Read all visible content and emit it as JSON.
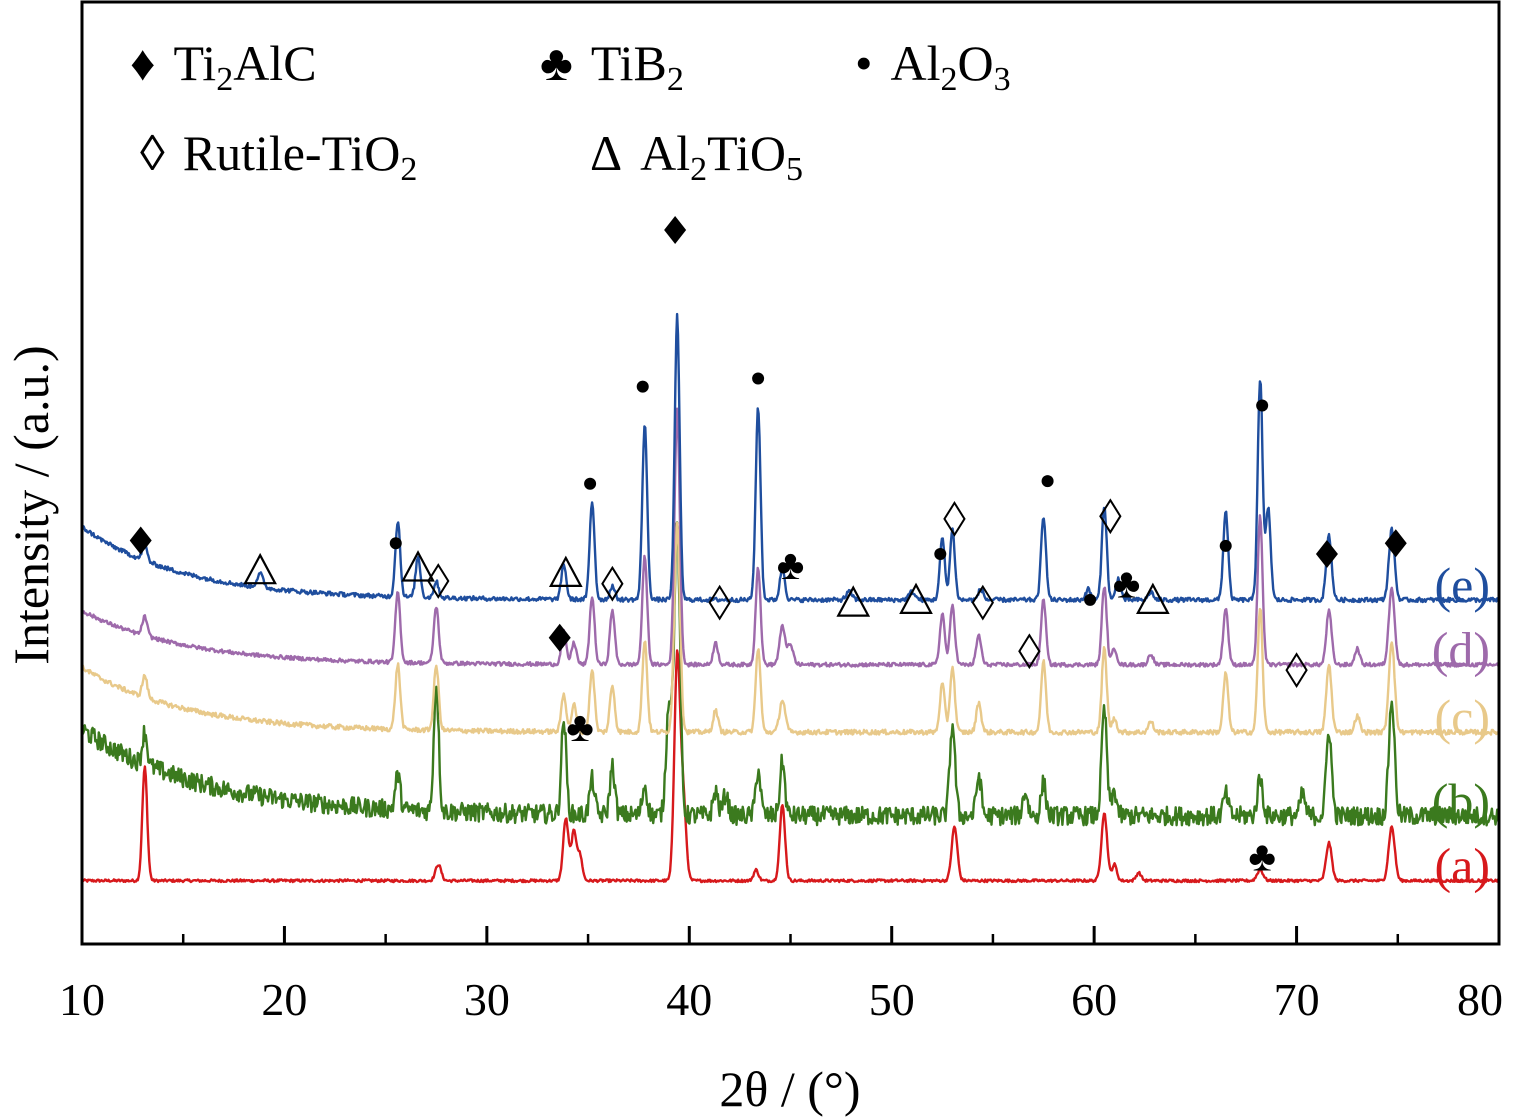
{
  "chart_data": {
    "type": "line",
    "xlabel": "2θ / (°)",
    "ylabel": "Intensity / (a.u.)",
    "xlim": [
      10,
      80
    ],
    "x_ticks": [
      10,
      20,
      30,
      40,
      50,
      60,
      70,
      80
    ],
    "y_ticks_shown": false,
    "grid": false,
    "legend": [
      {
        "symbol": "♦",
        "symbol_style": "filled",
        "name": "Ti",
        "sub": "2",
        "rest": "AlC"
      },
      {
        "symbol": "♣",
        "symbol_style": "filled",
        "name": "TiB",
        "sub": "2",
        "rest": ""
      },
      {
        "symbol": "•",
        "symbol_style": "filled",
        "name": "Al",
        "sub": "2",
        "rest": "O",
        "sub2": "3"
      },
      {
        "symbol": "◊",
        "symbol_style": "open",
        "name": "Rutile-TiO",
        "sub": "2",
        "rest": ""
      },
      {
        "symbol": "Δ",
        "symbol_style": "open",
        "name": "Al",
        "sub": "2",
        "rest": "TiO",
        "sub2": "5"
      }
    ],
    "series": [
      {
        "name": "(a)",
        "color": "#d7191c",
        "baseline": 0.9,
        "noise": 0.05,
        "bg_amp": 0,
        "bg_decay": 6,
        "peaks": [
          [
            13.1,
            4.2,
            0.12
          ],
          [
            27.6,
            0.6,
            0.14
          ],
          [
            33.9,
            2.3,
            0.13
          ],
          [
            34.3,
            1.8,
            0.13
          ],
          [
            34.6,
            0.9,
            0.12
          ],
          [
            39.4,
            8.2,
            0.14
          ],
          [
            39.7,
            3.0,
            0.14
          ],
          [
            43.3,
            0.4,
            0.12
          ],
          [
            44.6,
            2.8,
            0.13
          ],
          [
            53.1,
            2.0,
            0.14
          ],
          [
            60.5,
            2.5,
            0.14
          ],
          [
            61.0,
            0.6,
            0.12
          ],
          [
            62.2,
            0.3,
            0.12
          ],
          [
            68.2,
            0.4,
            0.15
          ],
          [
            71.6,
            1.4,
            0.14
          ],
          [
            74.7,
            2.0,
            0.15
          ]
        ]
      },
      {
        "name": "(b)",
        "color": "#3b7a1e",
        "baseline": 3.3,
        "noise": 0.35,
        "bg_amp": 3.2,
        "bg_decay": 6,
        "peaks": [
          [
            13.1,
            1.2,
            0.12
          ],
          [
            25.6,
            1.3,
            0.12
          ],
          [
            27.5,
            4.8,
            0.12
          ],
          [
            33.8,
            3.5,
            0.12
          ],
          [
            35.2,
            1.3,
            0.12
          ],
          [
            36.2,
            1.8,
            0.12
          ],
          [
            37.8,
            1.1,
            0.12
          ],
          [
            39.0,
            4.2,
            0.14
          ],
          [
            39.4,
            10.8,
            0.14
          ],
          [
            41.3,
            0.9,
            0.12
          ],
          [
            41.8,
            0.8,
            0.12
          ],
          [
            43.4,
            1.7,
            0.12
          ],
          [
            44.6,
            2.0,
            0.12
          ],
          [
            53.0,
            3.4,
            0.13
          ],
          [
            54.3,
            1.5,
            0.12
          ],
          [
            56.6,
            0.9,
            0.12
          ],
          [
            57.5,
            1.2,
            0.12
          ],
          [
            60.5,
            3.9,
            0.13
          ],
          [
            61.0,
            0.9,
            0.12
          ],
          [
            66.5,
            0.8,
            0.12
          ],
          [
            68.2,
            1.4,
            0.13
          ],
          [
            70.3,
            0.8,
            0.12
          ],
          [
            71.6,
            3.2,
            0.13
          ],
          [
            74.7,
            4.3,
            0.14
          ]
        ]
      },
      {
        "name": "(c)",
        "color": "#e8c98a",
        "baseline": 6.4,
        "noise": 0.09,
        "bg_amp": 2.4,
        "bg_decay": 5,
        "peaks": [
          [
            13.1,
            0.8,
            0.12
          ],
          [
            25.6,
            2.4,
            0.12
          ],
          [
            27.5,
            2.4,
            0.12
          ],
          [
            33.8,
            1.4,
            0.12
          ],
          [
            34.3,
            1.0,
            0.12
          ],
          [
            35.2,
            2.3,
            0.12
          ],
          [
            36.2,
            1.7,
            0.12
          ],
          [
            37.8,
            3.4,
            0.12
          ],
          [
            39.4,
            7.8,
            0.14
          ],
          [
            41.3,
            0.8,
            0.12
          ],
          [
            43.4,
            3.1,
            0.12
          ],
          [
            44.6,
            1.2,
            0.14
          ],
          [
            52.5,
            1.8,
            0.12
          ],
          [
            53.0,
            2.4,
            0.12
          ],
          [
            54.3,
            1.1,
            0.12
          ],
          [
            57.5,
            2.6,
            0.12
          ],
          [
            60.5,
            3.1,
            0.12
          ],
          [
            61.0,
            0.5,
            0.12
          ],
          [
            62.8,
            0.4,
            0.12
          ],
          [
            66.5,
            2.2,
            0.12
          ],
          [
            68.2,
            4.6,
            0.12
          ],
          [
            71.6,
            2.5,
            0.13
          ],
          [
            73.0,
            0.6,
            0.12
          ],
          [
            74.7,
            3.4,
            0.14
          ]
        ]
      },
      {
        "name": "(d)",
        "color": "#9e6aab",
        "baseline": 8.9,
        "noise": 0.07,
        "bg_amp": 2.0,
        "bg_decay": 5,
        "peaks": [
          [
            13.1,
            0.7,
            0.12
          ],
          [
            25.6,
            2.6,
            0.12
          ],
          [
            27.5,
            2.1,
            0.12
          ],
          [
            33.8,
            1.2,
            0.12
          ],
          [
            34.3,
            0.8,
            0.12
          ],
          [
            35.2,
            2.5,
            0.12
          ],
          [
            36.2,
            2.0,
            0.12
          ],
          [
            37.8,
            4.0,
            0.12
          ],
          [
            39.4,
            9.5,
            0.13
          ],
          [
            41.3,
            0.8,
            0.12
          ],
          [
            43.4,
            3.6,
            0.12
          ],
          [
            44.6,
            1.4,
            0.14
          ],
          [
            45.0,
            0.7,
            0.14
          ],
          [
            52.5,
            1.9,
            0.12
          ],
          [
            53.0,
            2.2,
            0.12
          ],
          [
            54.3,
            1.1,
            0.12
          ],
          [
            57.5,
            2.4,
            0.12
          ],
          [
            60.5,
            2.9,
            0.12
          ],
          [
            61.0,
            0.6,
            0.12
          ],
          [
            62.8,
            0.4,
            0.12
          ],
          [
            66.5,
            2.1,
            0.12
          ],
          [
            68.2,
            5.5,
            0.12
          ],
          [
            71.6,
            2.0,
            0.13
          ],
          [
            73.0,
            0.6,
            0.12
          ],
          [
            74.7,
            2.9,
            0.14
          ]
        ]
      },
      {
        "name": "(e)",
        "color": "#1f4e9e",
        "baseline": 11.3,
        "noise": 0.08,
        "bg_amp": 2.7,
        "bg_decay": 5,
        "peaks": [
          [
            13.1,
            0.6,
            0.12
          ],
          [
            18.8,
            0.5,
            0.15
          ],
          [
            25.6,
            2.8,
            0.12
          ],
          [
            26.6,
            1.5,
            0.12
          ],
          [
            27.5,
            0.6,
            0.12
          ],
          [
            33.8,
            1.3,
            0.12
          ],
          [
            35.2,
            3.6,
            0.12
          ],
          [
            36.2,
            0.5,
            0.12
          ],
          [
            37.8,
            6.5,
            0.12
          ],
          [
            39.4,
            10.5,
            0.12
          ],
          [
            43.4,
            7.1,
            0.12
          ],
          [
            44.6,
            1.2,
            0.12
          ],
          [
            47.9,
            0.3,
            0.15
          ],
          [
            51.0,
            0.3,
            0.15
          ],
          [
            52.5,
            2.3,
            0.12
          ],
          [
            53.0,
            2.6,
            0.12
          ],
          [
            54.4,
            0.4,
            0.12
          ],
          [
            57.5,
            3.1,
            0.12
          ],
          [
            59.7,
            0.4,
            0.12
          ],
          [
            60.5,
            3.5,
            0.12
          ],
          [
            61.2,
            0.8,
            0.12
          ],
          [
            62.8,
            0.3,
            0.12
          ],
          [
            66.5,
            3.3,
            0.12
          ],
          [
            68.2,
            8.2,
            0.12
          ],
          [
            68.6,
            3.4,
            0.12
          ],
          [
            71.6,
            2.4,
            0.13
          ],
          [
            74.7,
            2.6,
            0.14
          ]
        ]
      }
    ],
    "annotations": [
      {
        "symbol": "♦",
        "x": 12.9,
        "y": 13.5
      },
      {
        "symbol": "Δ",
        "x": 18.8,
        "y": 12.4
      },
      {
        "symbol": "•",
        "x": 25.5,
        "y": 13.4
      },
      {
        "symbol": "Δ",
        "x": 26.6,
        "y": 12.5
      },
      {
        "symbol": "◊",
        "x": 27.6,
        "y": 12.0
      },
      {
        "symbol": "Δ",
        "x": 33.9,
        "y": 12.3
      },
      {
        "symbol": "•",
        "x": 35.1,
        "y": 15.6
      },
      {
        "symbol": "◊",
        "x": 36.2,
        "y": 11.9
      },
      {
        "symbol": "•",
        "x": 37.7,
        "y": 19.2
      },
      {
        "symbol": "♦",
        "x": 39.3,
        "y": 25.0
      },
      {
        "symbol": "◊",
        "x": 41.5,
        "y": 11.2
      },
      {
        "symbol": "•",
        "x": 43.4,
        "y": 19.5
      },
      {
        "symbol": "♣",
        "x": 45.0,
        "y": 12.6
      },
      {
        "symbol": "Δ",
        "x": 48.1,
        "y": 11.2
      },
      {
        "symbol": "Δ",
        "x": 51.2,
        "y": 11.3
      },
      {
        "symbol": "•",
        "x": 52.4,
        "y": 13.0
      },
      {
        "symbol": "◊",
        "x": 53.1,
        "y": 14.3
      },
      {
        "symbol": "◊",
        "x": 54.5,
        "y": 11.2
      },
      {
        "symbol": "•",
        "x": 57.7,
        "y": 15.7
      },
      {
        "symbol": "•",
        "x": 59.8,
        "y": 11.3
      },
      {
        "symbol": "◊",
        "x": 60.8,
        "y": 14.4
      },
      {
        "symbol": "♣",
        "x": 61.6,
        "y": 11.9
      },
      {
        "symbol": "Δ",
        "x": 62.9,
        "y": 11.3
      },
      {
        "symbol": "•",
        "x": 66.5,
        "y": 13.3
      },
      {
        "symbol": "•",
        "x": 68.3,
        "y": 18.5
      },
      {
        "symbol": "♦",
        "x": 71.5,
        "y": 13.0
      },
      {
        "symbol": "♦",
        "x": 74.9,
        "y": 13.4
      },
      {
        "symbol": "♦",
        "x": 33.6,
        "y": 9.9
      },
      {
        "symbol": "◊",
        "x": 56.8,
        "y": 9.4
      },
      {
        "symbol": "◊",
        "x": 70.0,
        "y": 8.7
      },
      {
        "symbol": "♣",
        "x": 34.6,
        "y": 6.6
      },
      {
        "symbol": "♣",
        "x": 68.3,
        "y": 1.8
      }
    ]
  }
}
